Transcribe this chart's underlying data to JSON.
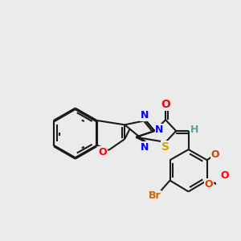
{
  "background_color": "#ebebeb",
  "bond_color": "#1a1a1a",
  "bond_width": 1.5,
  "figsize": [
    3.0,
    3.0
  ],
  "dpi": 100,
  "colors": {
    "N": "#0000ff",
    "O": "#ff0000",
    "S": "#ccaa00",
    "Br": "#cc6600",
    "H": "#5f9ea0",
    "C": "#1a1a1a",
    "O_sub": "#cc4400"
  }
}
